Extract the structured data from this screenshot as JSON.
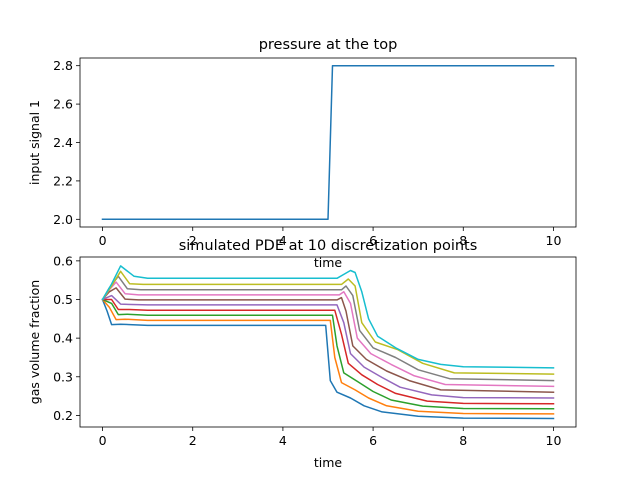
{
  "chart_data": [
    {
      "type": "line",
      "title": "pressure at the top",
      "xlabel": "time",
      "ylabel": "input signal 1",
      "xlim": [
        -0.5,
        10.5
      ],
      "ylim": [
        1.96,
        2.84
      ],
      "xticks": [
        "0",
        "2",
        "4",
        "6",
        "8",
        "10"
      ],
      "yticks": [
        "2.0",
        "2.2",
        "2.4",
        "2.6",
        "2.8"
      ],
      "grid": false,
      "colors": [
        "#1f77b4"
      ],
      "series": [
        {
          "x": [
            0,
            5,
            5.1,
            10
          ],
          "values": [
            2.0,
            2.0,
            2.8,
            2.8
          ]
        }
      ]
    },
    {
      "type": "line",
      "title": "simulated PDE at 10 discretization points",
      "xlabel": "time",
      "ylabel": "gas volume fraction",
      "xlim": [
        -0.5,
        10.5
      ],
      "ylim": [
        0.17,
        0.61
      ],
      "xticks": [
        "0",
        "2",
        "4",
        "6",
        "8",
        "10"
      ],
      "yticks": [
        "0.2",
        "0.3",
        "0.4",
        "0.5",
        "0.6"
      ],
      "grid": false,
      "colors": [
        "#1f77b4",
        "#ff7f0e",
        "#2ca02c",
        "#d62728",
        "#9467bd",
        "#8c564b",
        "#e377c2",
        "#7f7f7f",
        "#bcbd22",
        "#17becf"
      ],
      "series": [
        {
          "x": [
            0,
            0.1,
            0.2,
            0.4,
            1,
            4.95,
            5.05,
            5.2,
            5.5,
            5.8,
            6.2,
            7,
            8,
            10
          ],
          "values": [
            0.5,
            0.47,
            0.435,
            0.436,
            0.433,
            0.433,
            0.29,
            0.26,
            0.245,
            0.225,
            0.209,
            0.198,
            0.193,
            0.192
          ]
        },
        {
          "x": [
            0,
            0.15,
            0.3,
            0.5,
            1,
            5.05,
            5.15,
            5.3,
            5.6,
            5.9,
            6.3,
            7,
            8,
            10
          ],
          "values": [
            0.5,
            0.48,
            0.448,
            0.449,
            0.446,
            0.446,
            0.35,
            0.285,
            0.266,
            0.245,
            0.225,
            0.211,
            0.205,
            0.204
          ]
        },
        {
          "x": [
            0,
            0.2,
            0.35,
            0.55,
            1,
            5.1,
            5.2,
            5.35,
            5.65,
            6,
            6.4,
            7.1,
            8,
            10
          ],
          "values": [
            0.5,
            0.49,
            0.461,
            0.462,
            0.459,
            0.459,
            0.38,
            0.31,
            0.288,
            0.262,
            0.24,
            0.224,
            0.218,
            0.217
          ]
        },
        {
          "x": [
            0,
            0.2,
            0.35,
            0.6,
            1,
            5.15,
            5.3,
            5.45,
            5.75,
            6.1,
            6.5,
            7.2,
            8,
            10
          ],
          "values": [
            0.5,
            0.5,
            0.474,
            0.474,
            0.472,
            0.472,
            0.41,
            0.335,
            0.305,
            0.28,
            0.257,
            0.237,
            0.231,
            0.23
          ]
        },
        {
          "x": [
            0,
            0.2,
            0.4,
            0.65,
            1,
            5.2,
            5.35,
            5.5,
            5.8,
            6.2,
            6.6,
            7.3,
            8,
            10
          ],
          "values": [
            0.5,
            0.51,
            0.488,
            0.487,
            0.486,
            0.486,
            0.44,
            0.36,
            0.325,
            0.298,
            0.273,
            0.253,
            0.246,
            0.245
          ]
        },
        {
          "x": [
            0,
            0.15,
            0.3,
            0.5,
            0.8,
            5.2,
            5.3,
            5.4,
            5.55,
            5.85,
            6.3,
            6.8,
            7.5,
            10
          ],
          "values": [
            0.5,
            0.52,
            0.53,
            0.501,
            0.499,
            0.499,
            0.505,
            0.47,
            0.38,
            0.345,
            0.315,
            0.29,
            0.266,
            0.26
          ]
        },
        {
          "x": [
            0,
            0.15,
            0.3,
            0.5,
            0.8,
            5.25,
            5.35,
            5.5,
            5.65,
            5.95,
            6.4,
            6.9,
            7.6,
            10
          ],
          "values": [
            0.5,
            0.525,
            0.545,
            0.515,
            0.512,
            0.512,
            0.52,
            0.49,
            0.4,
            0.36,
            0.332,
            0.303,
            0.28,
            0.275
          ]
        },
        {
          "x": [
            0,
            0.15,
            0.35,
            0.55,
            0.85,
            5.3,
            5.4,
            5.55,
            5.7,
            6,
            6.5,
            7,
            7.7,
            10
          ],
          "values": [
            0.5,
            0.53,
            0.56,
            0.528,
            0.525,
            0.525,
            0.535,
            0.51,
            0.42,
            0.375,
            0.35,
            0.318,
            0.295,
            0.29
          ]
        },
        {
          "x": [
            0,
            0.2,
            0.4,
            0.6,
            0.9,
            5.3,
            5.45,
            5.6,
            5.75,
            6.05,
            6.55,
            7.1,
            7.8,
            10
          ],
          "values": [
            0.5,
            0.535,
            0.573,
            0.541,
            0.539,
            0.539,
            0.553,
            0.535,
            0.44,
            0.39,
            0.37,
            0.335,
            0.31,
            0.307
          ]
        },
        {
          "x": [
            0,
            0.2,
            0.4,
            0.5,
            0.7,
            1,
            5.2,
            5.35,
            5.5,
            5.6,
            5.75,
            5.9,
            6.1,
            6.5,
            7,
            7.5,
            8,
            10
          ],
          "values": [
            0.5,
            0.54,
            0.587,
            0.578,
            0.56,
            0.555,
            0.555,
            0.565,
            0.575,
            0.57,
            0.52,
            0.45,
            0.405,
            0.375,
            0.345,
            0.332,
            0.326,
            0.323
          ]
        }
      ]
    }
  ]
}
